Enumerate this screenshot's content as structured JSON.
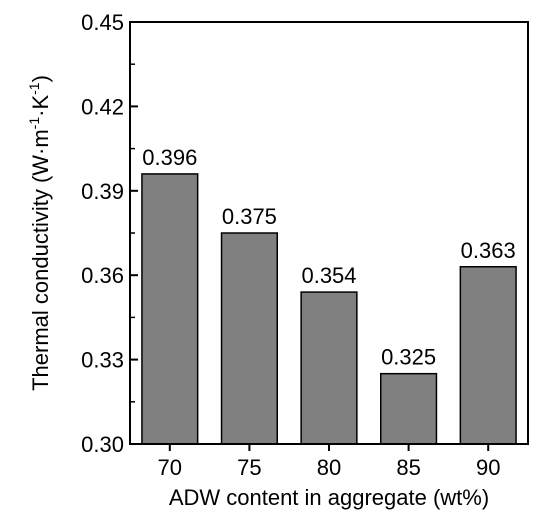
{
  "chart_data": {
    "type": "bar",
    "categories": [
      "70",
      "75",
      "80",
      "85",
      "90"
    ],
    "values": [
      0.396,
      0.375,
      0.354,
      0.325,
      0.363
    ],
    "data_labels": [
      "0.396",
      "0.375",
      "0.354",
      "0.325",
      "0.363"
    ],
    "xlabel": "ADW content in aggregate (wt%)",
    "ylabel": {
      "text": "Thermal conductivity (W·m",
      "sup1": "-1",
      "mid": "·K",
      "sup2": "-1",
      "end": ")"
    },
    "ylim": [
      0.3,
      0.45
    ],
    "yticks": [
      "0.30",
      "0.33",
      "0.36",
      "0.39",
      "0.42",
      "0.45"
    ],
    "grid": false,
    "bar_color": "#808080",
    "bar_edge_color": "#000000"
  }
}
